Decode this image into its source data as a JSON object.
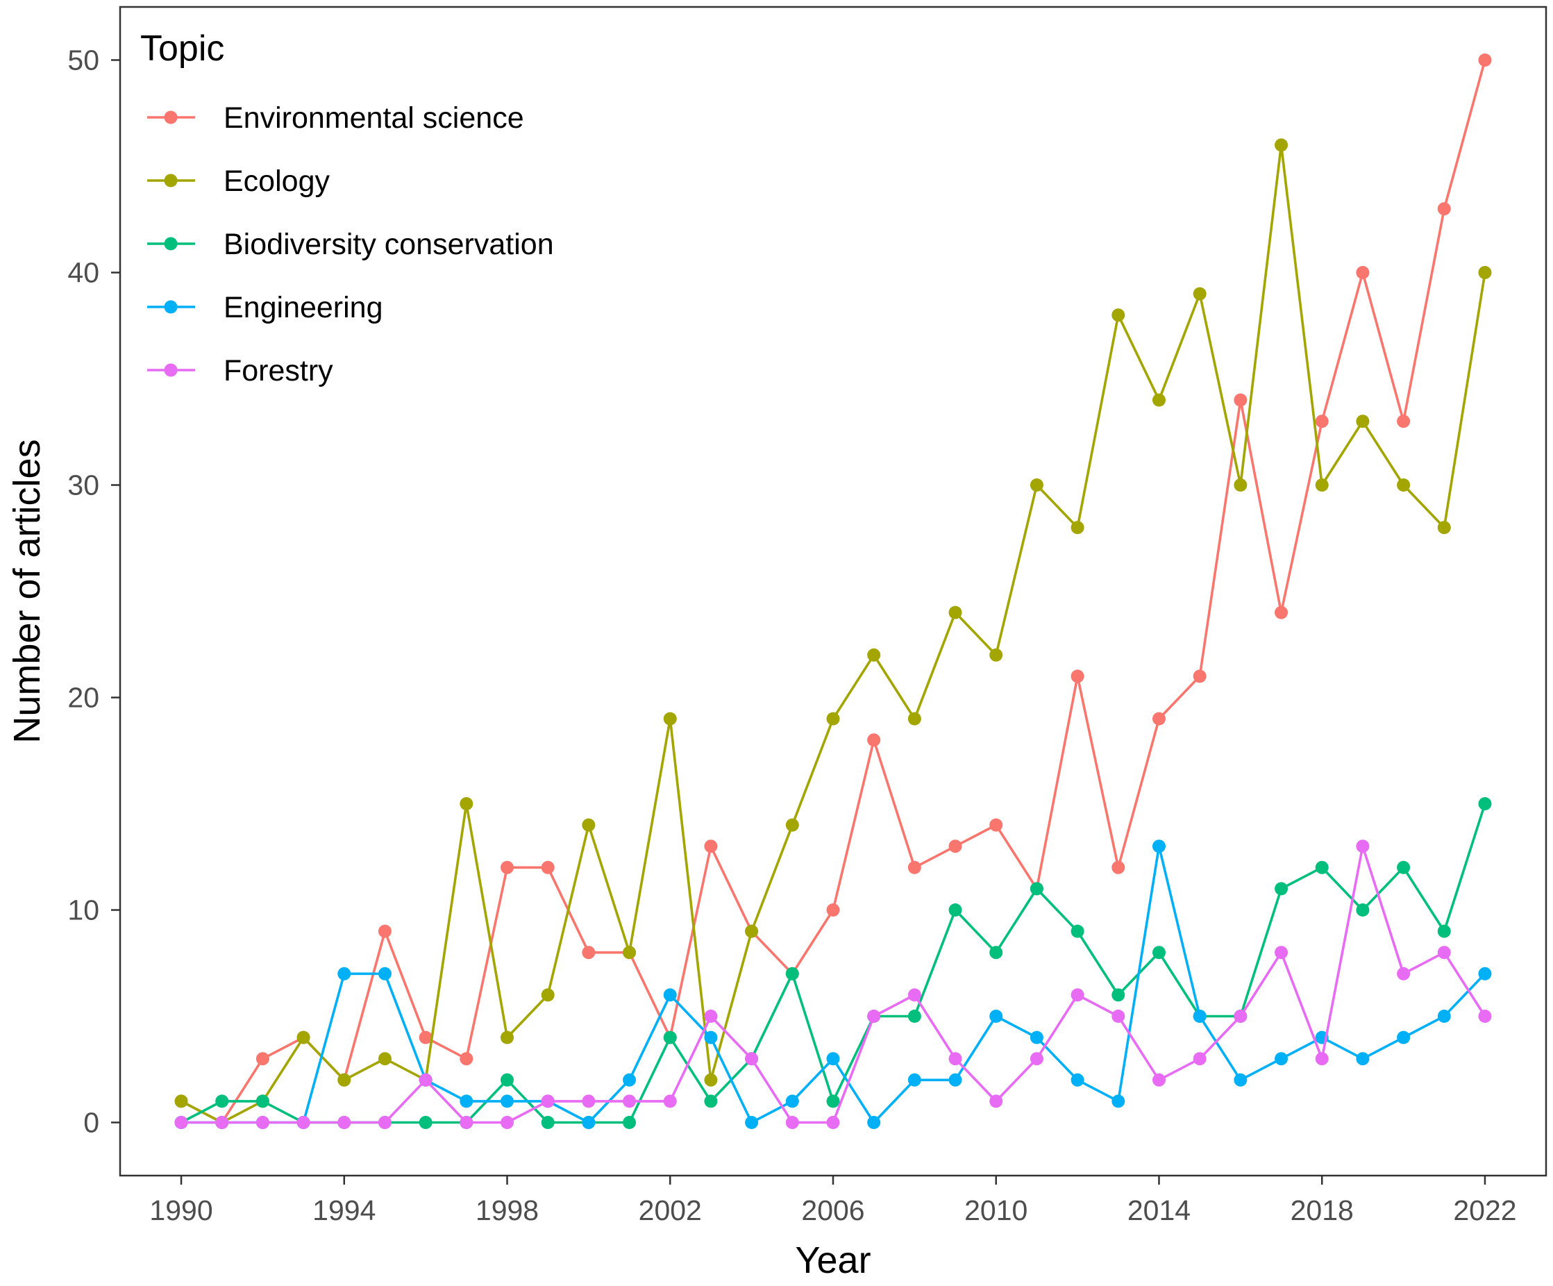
{
  "chart_data": {
    "type": "line",
    "title": "",
    "xlabel": "Year",
    "ylabel": "Number of articles",
    "xlim": [
      1988.5,
      2023.5
    ],
    "ylim": [
      -2.5,
      52.5
    ],
    "xticks": [
      1990,
      1994,
      1998,
      2002,
      2006,
      2010,
      2014,
      2018,
      2022
    ],
    "xtick_labels": [
      "1990",
      "1994",
      "1998",
      "2002",
      "2006",
      "2010",
      "2014",
      "2018",
      "2022"
    ],
    "yticks": [
      0,
      10,
      20,
      30,
      40,
      50
    ],
    "ytick_labels": [
      "0",
      "10",
      "20",
      "30",
      "40",
      "50"
    ],
    "grid": false,
    "legend": {
      "title": "Topic",
      "position": "top-left"
    },
    "x": [
      1990,
      1991,
      1992,
      1993,
      1994,
      1995,
      1996,
      1997,
      1998,
      1999,
      2000,
      2001,
      2002,
      2003,
      2004,
      2005,
      2006,
      2007,
      2008,
      2009,
      2010,
      2011,
      2012,
      2013,
      2014,
      2015,
      2016,
      2017,
      2018,
      2019,
      2020,
      2021,
      2022
    ],
    "series": [
      {
        "name": "Environmental science",
        "color": "#F8766D",
        "values": [
          1,
          0,
          3,
          4,
          2,
          9,
          4,
          3,
          12,
          12,
          8,
          8,
          4,
          13,
          9,
          7,
          10,
          18,
          12,
          13,
          14,
          11,
          21,
          12,
          19,
          21,
          34,
          24,
          33,
          40,
          33,
          43,
          50
        ]
      },
      {
        "name": "Ecology",
        "color": "#A3A500",
        "values": [
          1,
          0,
          1,
          4,
          2,
          3,
          2,
          15,
          4,
          6,
          14,
          8,
          19,
          2,
          9,
          14,
          19,
          22,
          19,
          24,
          22,
          30,
          28,
          38,
          34,
          39,
          30,
          46,
          30,
          33,
          30,
          28,
          40
        ]
      },
      {
        "name": "Biodiversity conservation",
        "color": "#00BF7D",
        "values": [
          0,
          1,
          1,
          0,
          0,
          0,
          0,
          0,
          2,
          0,
          0,
          0,
          4,
          1,
          3,
          7,
          1,
          5,
          5,
          10,
          8,
          11,
          9,
          6,
          8,
          5,
          5,
          11,
          12,
          10,
          12,
          9,
          15
        ]
      },
      {
        "name": "Engineering",
        "color": "#00B0F6",
        "values": [
          0,
          0,
          0,
          0,
          7,
          7,
          2,
          1,
          1,
          1,
          0,
          2,
          6,
          4,
          0,
          1,
          3,
          0,
          2,
          2,
          5,
          4,
          2,
          1,
          13,
          5,
          2,
          3,
          4,
          3,
          4,
          5,
          7
        ]
      },
      {
        "name": "Forestry",
        "color": "#E76BF3",
        "values": [
          0,
          0,
          0,
          0,
          0,
          0,
          2,
          0,
          0,
          1,
          1,
          1,
          1,
          5,
          3,
          0,
          0,
          5,
          6,
          3,
          1,
          3,
          6,
          5,
          2,
          3,
          5,
          8,
          3,
          13,
          7,
          8,
          5
        ]
      }
    ]
  }
}
